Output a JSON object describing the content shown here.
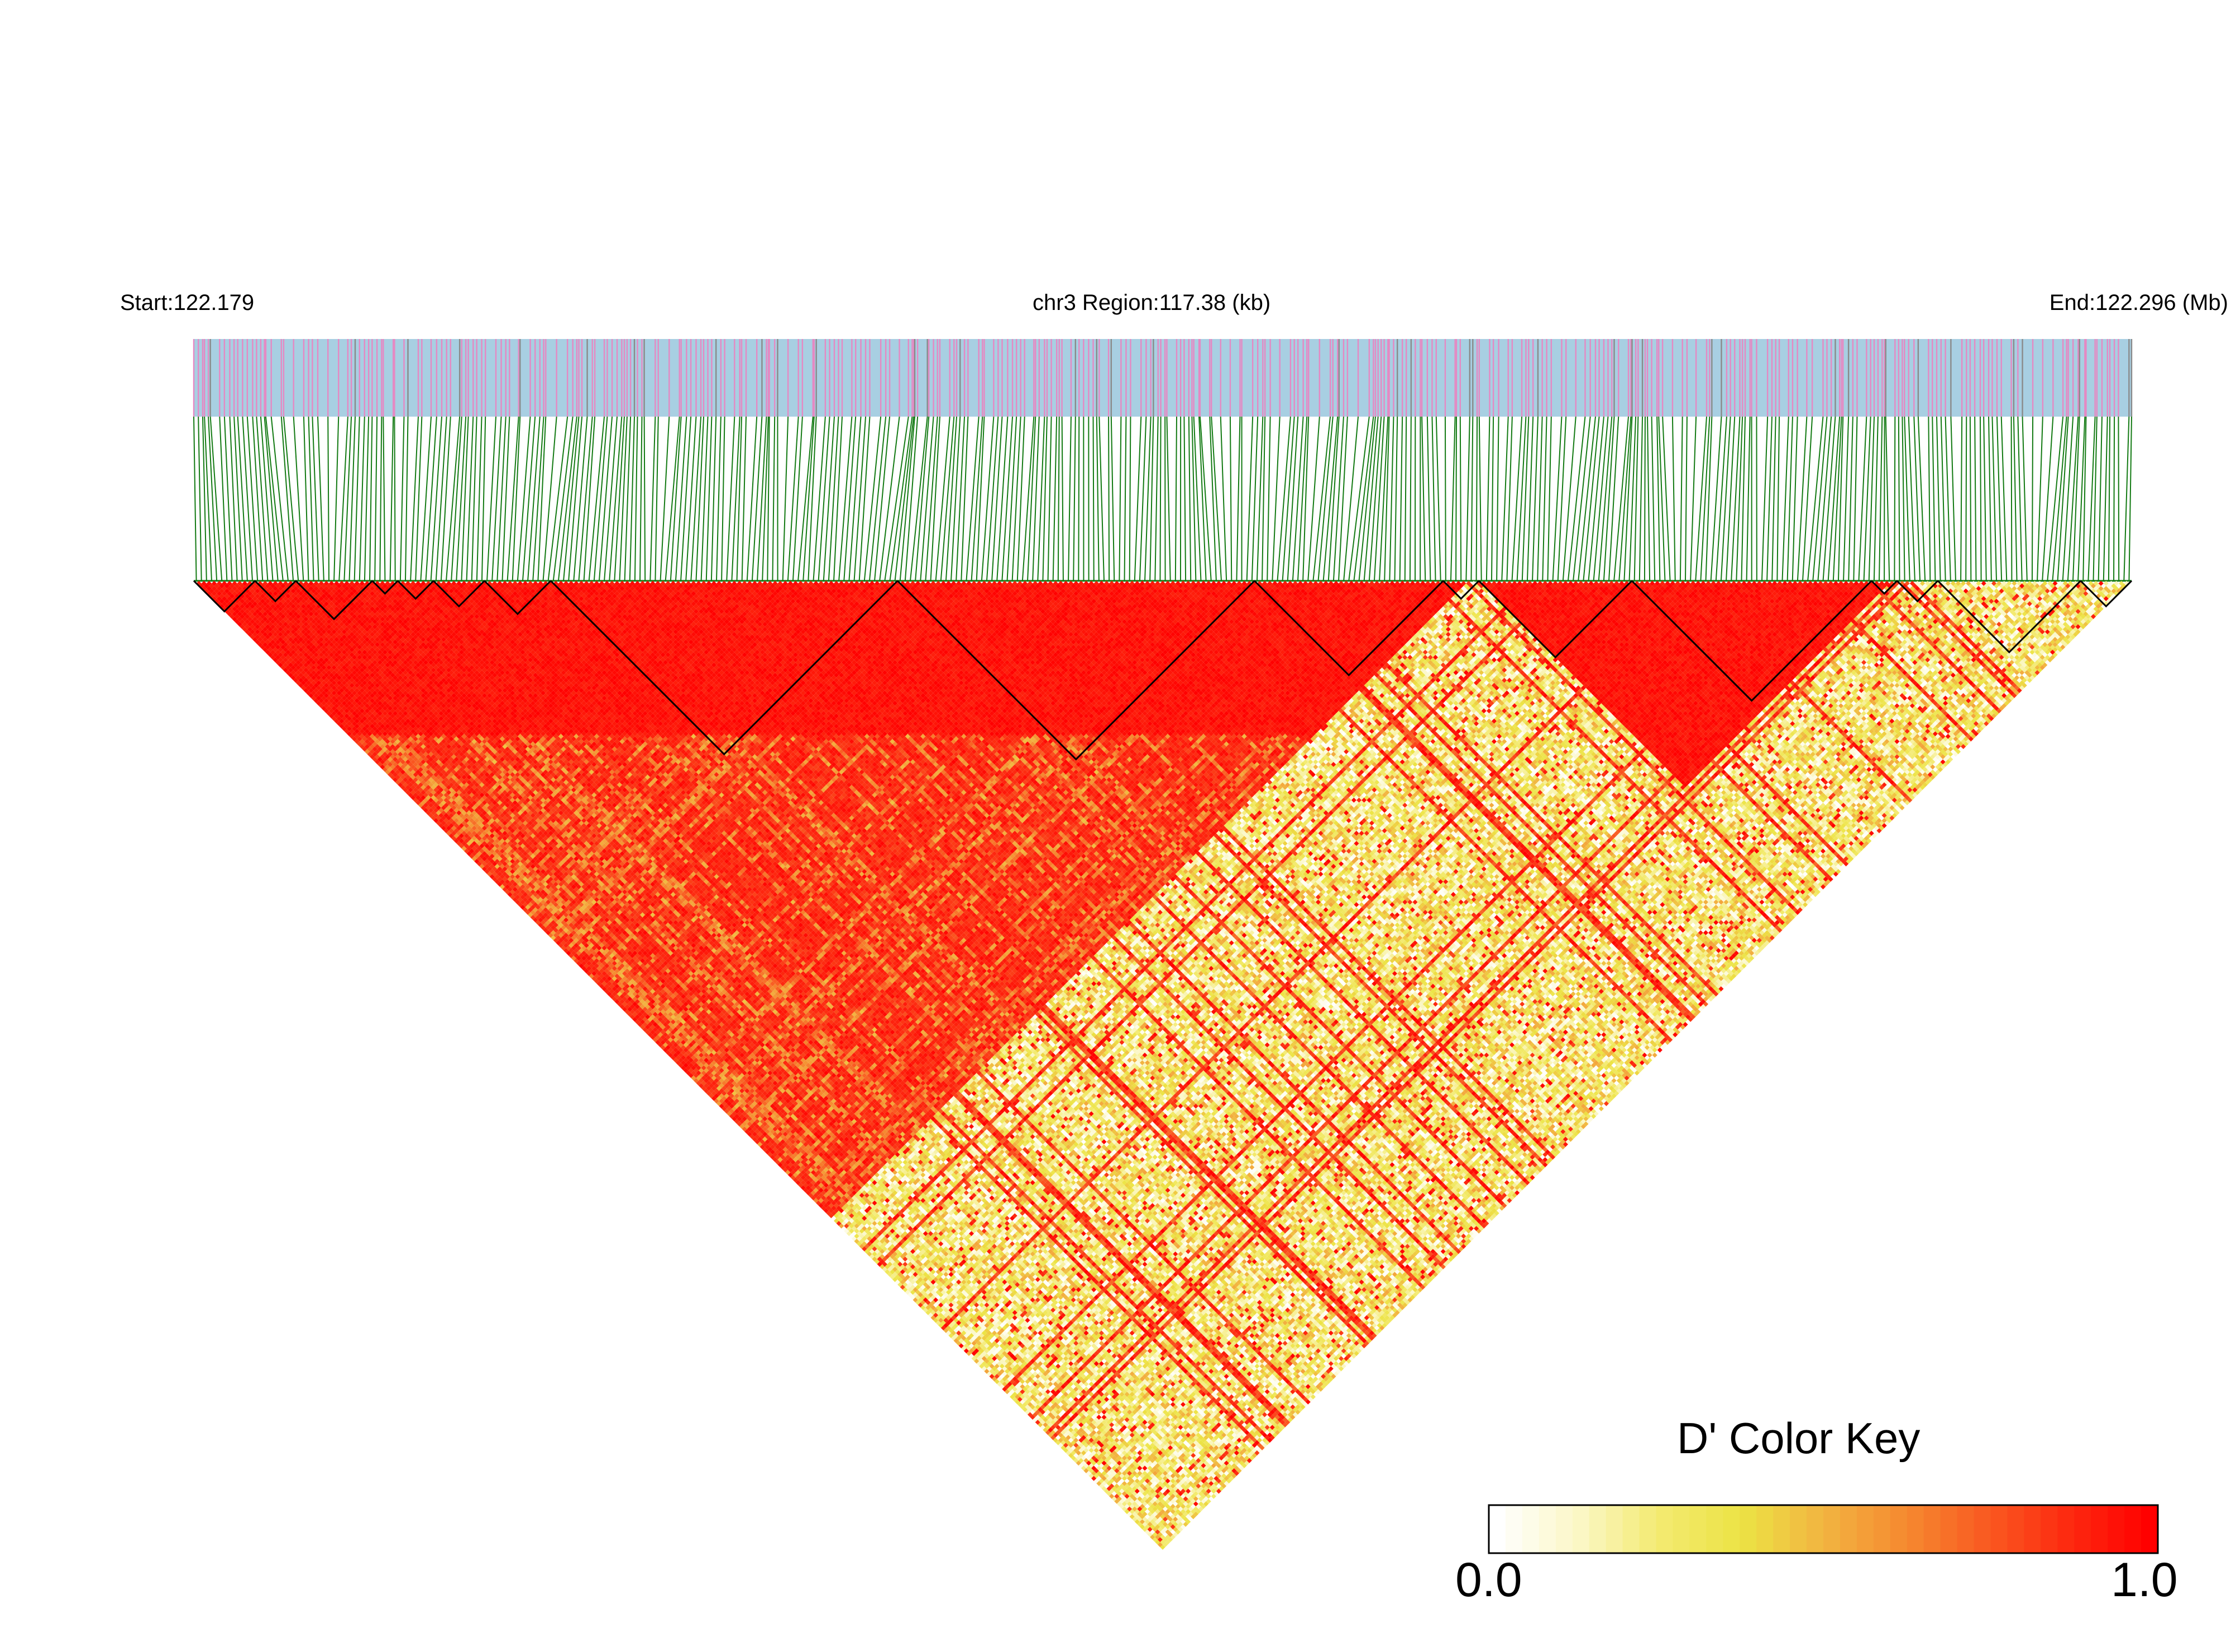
{
  "header": {
    "start": "Start:122.179",
    "region": "chr3 Region:117.38 (kb)",
    "end": "End:122.296 (Mb)"
  },
  "legend": {
    "title": "D' Color Key",
    "min_label": "0.0",
    "max_label": "1.0",
    "colors": [
      "#ffffff",
      "#fbf7c6",
      "#f3ea70",
      "#ece344",
      "#f2b441",
      "#f58a30",
      "#f95a21",
      "#fd2a10",
      "#ff0000"
    ]
  },
  "chart_data": {
    "type": "heatmap",
    "description_free": true,
    "chromosome": "chr3",
    "region_start_mb": 122.179,
    "region_end_mb": 122.296,
    "region_size_kb": 117.38,
    "n_snps": 380,
    "colors": {
      "track_background": "#a8cfe2",
      "track_snp_pink": "#e589c3",
      "track_snp_gray": "#8a8a8a",
      "connector_lines": "#137a13",
      "block_outline": "#000000"
    },
    "ld_blocks_snp_index": [
      [
        0,
        12
      ],
      [
        12,
        20
      ],
      [
        20,
        35
      ],
      [
        35,
        40
      ],
      [
        40,
        47
      ],
      [
        47,
        57
      ],
      [
        57,
        70
      ],
      [
        70,
        138
      ],
      [
        138,
        208
      ],
      [
        208,
        245
      ],
      [
        245,
        252
      ],
      [
        252,
        282
      ],
      [
        282,
        329
      ],
      [
        329,
        334
      ],
      [
        334,
        342
      ],
      [
        342,
        370
      ],
      [
        370,
        380
      ]
    ],
    "high_ld_regions_snp_index": [
      [
        0,
        250
      ],
      [
        252,
        333
      ]
    ],
    "dprime_scale": [
      0.0,
      1.0
    ]
  }
}
